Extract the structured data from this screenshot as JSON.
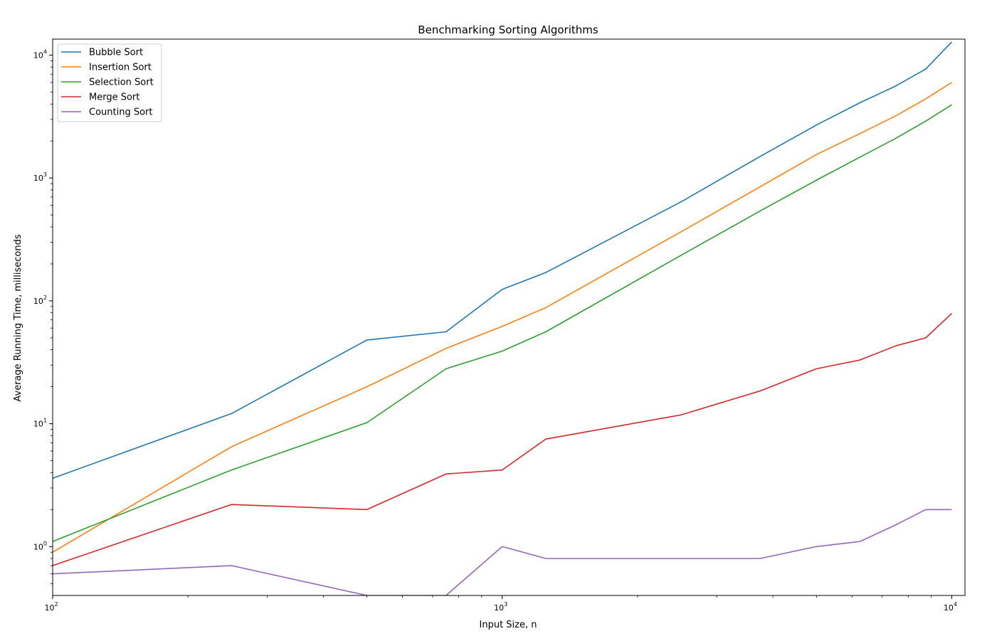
{
  "chart_data": {
    "type": "line",
    "title": "Benchmarking Sorting Algorithms",
    "xlabel": "Input Size, n",
    "ylabel": "Average Running Time, milliseconds",
    "xscale": "log",
    "yscale": "log",
    "xlim": [
      100,
      10700
    ],
    "ylim": [
      0.4,
      13500
    ],
    "xticks": [
      {
        "value": 100,
        "base": "10",
        "exp": "2"
      },
      {
        "value": 1000,
        "base": "10",
        "exp": "3"
      },
      {
        "value": 10000,
        "base": "10",
        "exp": "4"
      }
    ],
    "yticks": [
      {
        "value": 1,
        "base": "10",
        "exp": "0"
      },
      {
        "value": 10,
        "base": "10",
        "exp": "1"
      },
      {
        "value": 100,
        "base": "10",
        "exp": "2"
      },
      {
        "value": 1000,
        "base": "10",
        "exp": "3"
      },
      {
        "value": 10000,
        "base": "10",
        "exp": "4"
      }
    ],
    "grid": false,
    "legend_position": "top-left",
    "x": [
      100,
      250,
      500,
      750,
      1000,
      1250,
      2500,
      3750,
      5000,
      6250,
      7500,
      8750,
      10000
    ],
    "series": [
      {
        "name": "Bubble Sort",
        "color": "#1f77b4",
        "values": [
          3.6,
          12.1,
          48,
          56,
          124,
          170,
          640,
          1500,
          2700,
          4100,
          5600,
          7700,
          12800
        ]
      },
      {
        "name": "Insertion Sort",
        "color": "#ff7f0e",
        "values": [
          0.9,
          6.5,
          20,
          41,
          62,
          88,
          365,
          850,
          1550,
          2300,
          3200,
          4400,
          6000
        ]
      },
      {
        "name": "Selection Sort",
        "color": "#2ca02c",
        "values": [
          1.1,
          4.2,
          10.2,
          28,
          39,
          56,
          235,
          540,
          960,
          1480,
          2100,
          2900,
          3950
        ]
      },
      {
        "name": "Merge Sort",
        "color": "#d62728",
        "values": [
          0.7,
          2.2,
          2.0,
          3.9,
          4.2,
          7.5,
          11.8,
          18.5,
          28,
          33,
          43,
          50,
          79
        ]
      },
      {
        "name": "Counting Sort",
        "color": "#9467bd",
        "values": [
          0.6,
          0.7,
          0.4,
          0.4,
          1.0,
          0.8,
          0.8,
          0.8,
          1.0,
          1.1,
          1.5,
          2.0,
          2.0
        ]
      }
    ]
  }
}
